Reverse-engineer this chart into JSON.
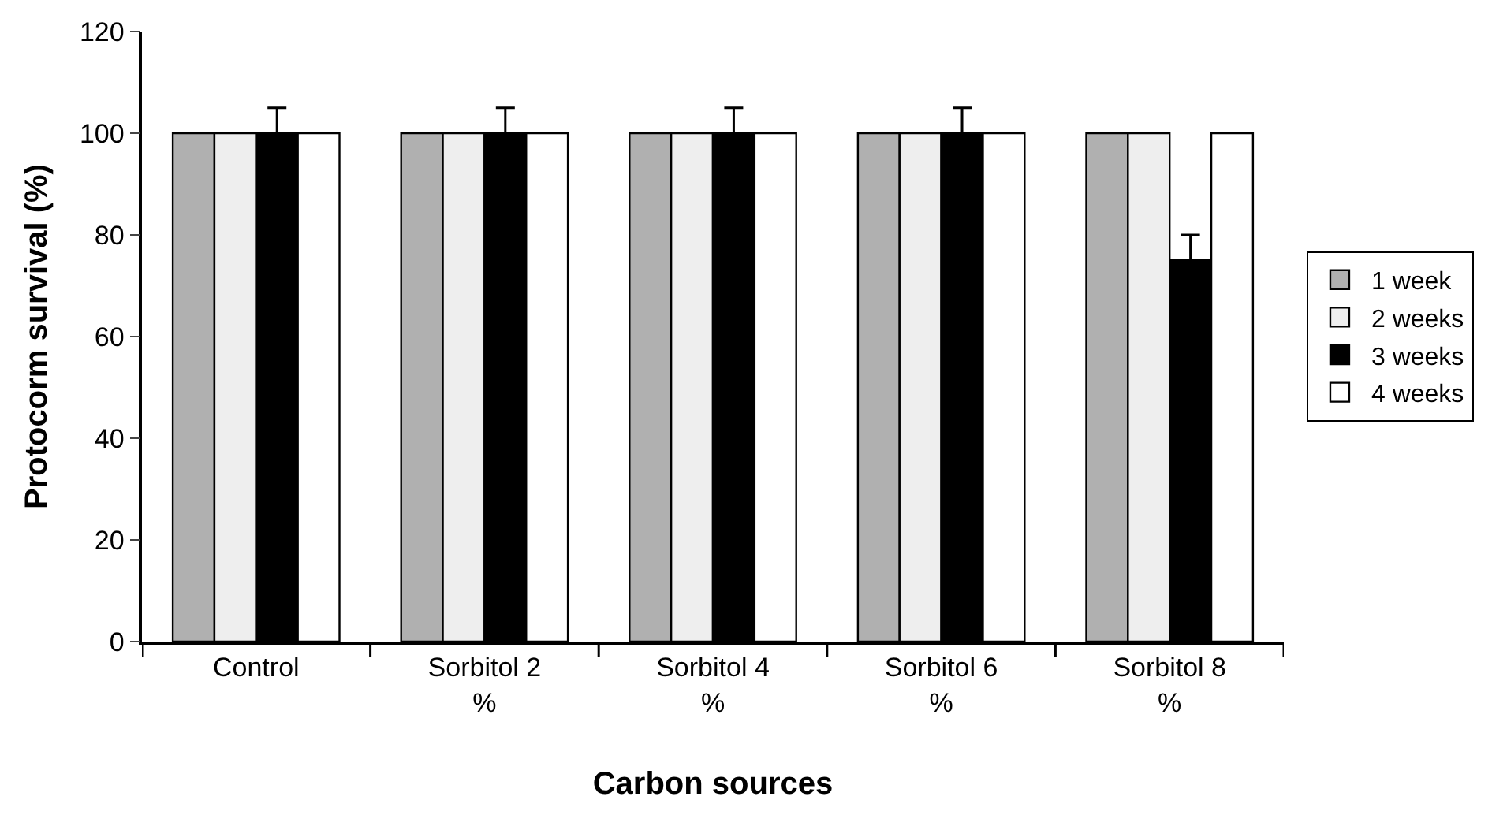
{
  "chart_data": {
    "type": "bar",
    "xlabel": "Carbon sources",
    "ylabel": "Protocorm survival (%)",
    "categories": [
      "Control",
      "Sorbitol 2 %",
      "Sorbitol 4 %",
      "Sorbitol 6 %",
      "Sorbitol 8 %"
    ],
    "series": [
      {
        "name": "1 week",
        "color": "#b0b0b0",
        "values": [
          100,
          100,
          100,
          100,
          100
        ]
      },
      {
        "name": "2 weeks",
        "color": "#eeeeee",
        "values": [
          100,
          100,
          100,
          100,
          100
        ]
      },
      {
        "name": "3 weeks",
        "color": "#000000",
        "values": [
          100,
          100,
          100,
          100,
          75
        ],
        "errors": [
          [
            100,
            105
          ],
          [
            100,
            105
          ],
          [
            100,
            105
          ],
          [
            100,
            105
          ],
          [
            75,
            80
          ]
        ]
      },
      {
        "name": "4 weeks",
        "color": "#ffffff",
        "values": [
          100,
          100,
          100,
          100,
          100
        ]
      }
    ],
    "ylim": [
      0,
      120
    ],
    "yticks": [
      0,
      20,
      40,
      60,
      80,
      100,
      120
    ],
    "grid": false,
    "legend": "right"
  }
}
